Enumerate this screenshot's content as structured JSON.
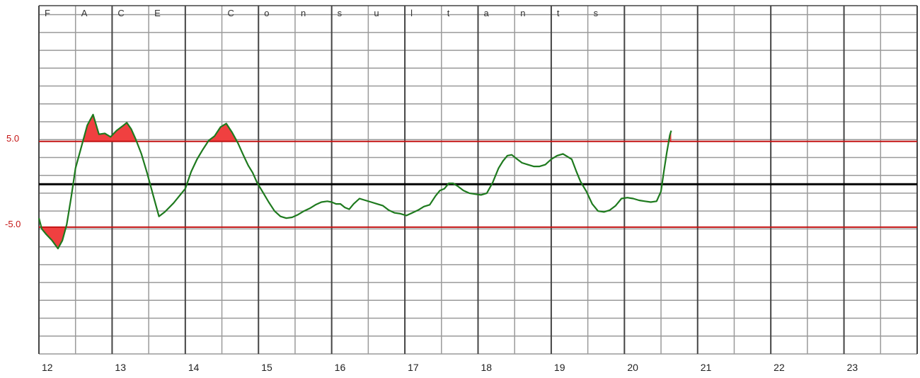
{
  "chart_data": {
    "type": "line",
    "title": "",
    "xlabel": "",
    "ylabel": "",
    "header_letters": [
      "F",
      "A",
      "C",
      "E",
      "",
      "C",
      "o",
      "n",
      "s",
      "u",
      "l",
      "t",
      "a",
      "n",
      "t",
      "s"
    ],
    "x_ticks": [
      "12",
      "13",
      "14",
      "15",
      "16",
      "17",
      "18",
      "19",
      "20",
      "21",
      "22",
      "23"
    ],
    "xlim": [
      12,
      24
    ],
    "ylim": [
      -19,
      20
    ],
    "thresholds": [
      {
        "label": "5.0",
        "value": 4.8
      },
      {
        "label": "-5.0",
        "value": -4.8
      }
    ],
    "baseline": 0,
    "colors": {
      "line": "#1e7a1e",
      "threshold": "#c41414",
      "fill": "#f04040",
      "baseline": "#000000",
      "grid_major": "#444444",
      "grid_minor": "#9a9a9a"
    },
    "series": [
      {
        "x": [
          12.0,
          12.04,
          12.1,
          12.18,
          12.26,
          12.32,
          12.38,
          12.44,
          12.5,
          12.58,
          12.66,
          12.74,
          12.82,
          12.9,
          12.98,
          13.06,
          13.14,
          13.2,
          13.26,
          13.32,
          13.4,
          13.48,
          13.56,
          13.64,
          13.72,
          13.78,
          13.84,
          13.9,
          14.0,
          14.08,
          14.16,
          14.24,
          14.32,
          14.4,
          14.48,
          14.56,
          14.64,
          14.72,
          14.78,
          14.82,
          14.86,
          14.92,
          14.98,
          15.06,
          15.14,
          15.22,
          15.3,
          15.38,
          15.46,
          15.54,
          15.62,
          15.7,
          15.78,
          15.86,
          15.94,
          16.0,
          16.06,
          16.12,
          16.18,
          16.24,
          16.3,
          16.38,
          16.46,
          16.54,
          16.62,
          16.7,
          16.78,
          16.86,
          16.94,
          17.02,
          17.1,
          17.18,
          17.26,
          17.34,
          17.42,
          17.48,
          17.54,
          17.6,
          17.66,
          17.72,
          17.8,
          17.88,
          17.96,
          18.04,
          18.12,
          18.2,
          18.28,
          18.34,
          18.4,
          18.46,
          18.52,
          18.6,
          18.68,
          18.76,
          18.84,
          18.92,
          19.0,
          19.08,
          19.16,
          19.22,
          19.28,
          19.34,
          19.4,
          19.48,
          19.56,
          19.64,
          19.72,
          19.8,
          19.88,
          19.96,
          20.04,
          20.12,
          20.2,
          20.28,
          20.36,
          20.44,
          20.5,
          20.54,
          20.58,
          20.62,
          20.64
        ],
        "y": [
          -3.8,
          -5.0,
          -5.6,
          -6.3,
          -7.2,
          -6.3,
          -4.5,
          -1.5,
          1.8,
          4.2,
          6.6,
          7.8,
          5.6,
          5.7,
          5.3,
          6.0,
          6.5,
          6.9,
          6.2,
          5.1,
          3.4,
          1.2,
          -1.2,
          -3.6,
          -3.1,
          -2.6,
          -2.1,
          -1.5,
          -0.5,
          1.4,
          2.8,
          3.9,
          4.9,
          5.4,
          6.4,
          6.8,
          5.8,
          4.6,
          3.5,
          2.8,
          2.1,
          1.3,
          0.2,
          -0.9,
          -2.0,
          -3.0,
          -3.6,
          -3.8,
          -3.7,
          -3.4,
          -3.0,
          -2.7,
          -2.3,
          -2.0,
          -1.9,
          -2.0,
          -2.2,
          -2.2,
          -2.6,
          -2.8,
          -2.2,
          -1.6,
          -1.8,
          -2.0,
          -2.2,
          -2.4,
          -2.9,
          -3.2,
          -3.3,
          -3.5,
          -3.2,
          -2.9,
          -2.5,
          -2.3,
          -1.3,
          -0.7,
          -0.5,
          0.1,
          0.1,
          -0.2,
          -0.7,
          -1.0,
          -1.1,
          -1.2,
          -1.0,
          0.2,
          1.8,
          2.6,
          3.2,
          3.3,
          2.9,
          2.4,
          2.2,
          2.0,
          2.0,
          2.2,
          2.8,
          3.2,
          3.4,
          3.1,
          2.8,
          1.5,
          0.3,
          -0.8,
          -2.2,
          -3.0,
          -3.1,
          -2.9,
          -2.4,
          -1.6,
          -1.5,
          -1.6,
          -1.8,
          -1.9,
          -2.0,
          -1.9,
          -0.8,
          1.5,
          3.6,
          5.5,
          6.0
        ]
      }
    ]
  }
}
